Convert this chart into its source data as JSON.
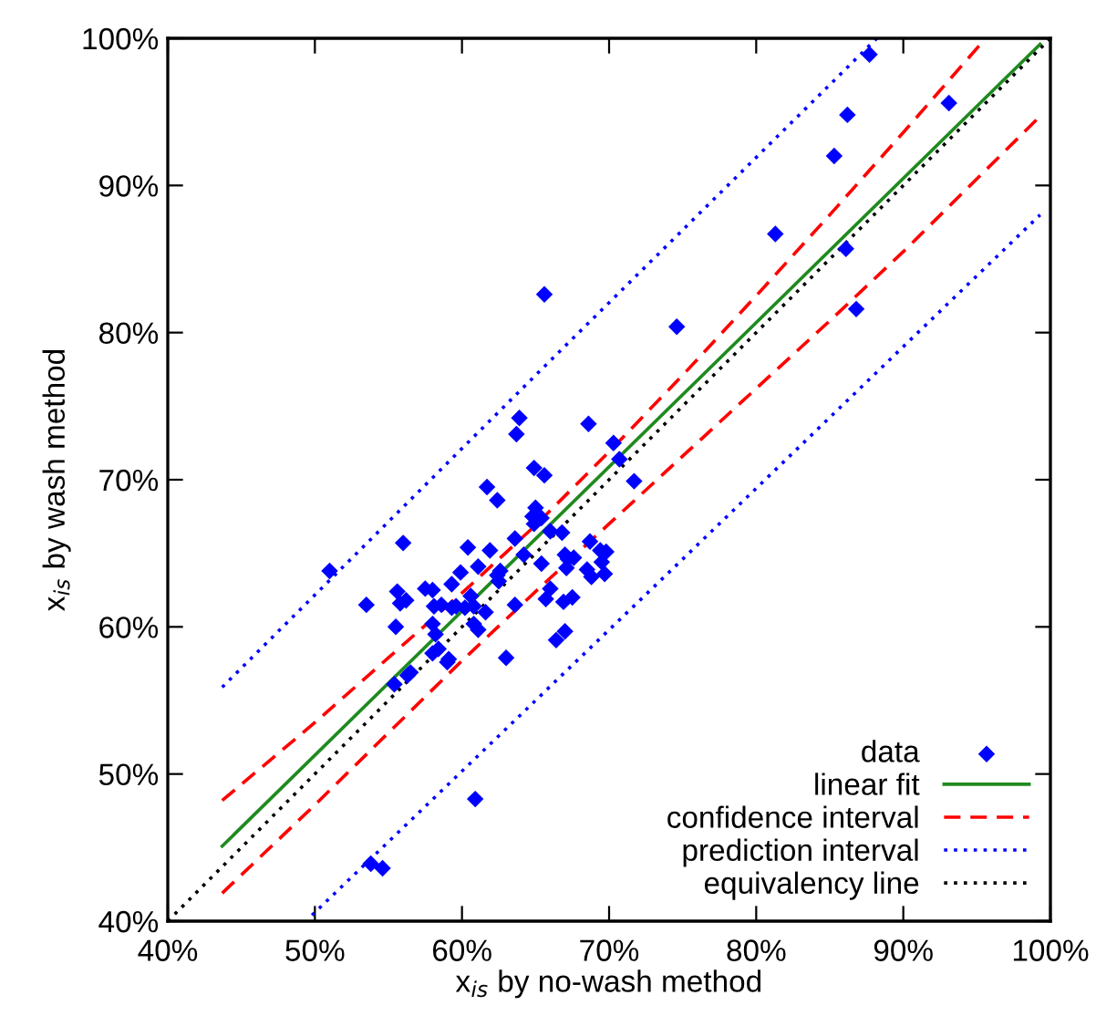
{
  "chart_data": {
    "type": "scatter",
    "xlabel": "x$_{is}$ by no-wash method",
    "ylabel": "x$_{is}$ by wash method",
    "xlim": [
      40,
      100
    ],
    "ylim": [
      40,
      100
    ],
    "xticks": [
      {
        "value": 40,
        "label": "40%"
      },
      {
        "value": 50,
        "label": "50%"
      },
      {
        "value": 60,
        "label": "60%"
      },
      {
        "value": 70,
        "label": "70%"
      },
      {
        "value": 80,
        "label": "80%"
      },
      {
        "value": 90,
        "label": "90%"
      },
      {
        "value": 100,
        "label": "100%"
      }
    ],
    "yticks": [
      {
        "value": 40,
        "label": "40%"
      },
      {
        "value": 50,
        "label": "50%"
      },
      {
        "value": 60,
        "label": "60%"
      },
      {
        "value": 70,
        "label": "70%"
      },
      {
        "value": 80,
        "label": "80%"
      },
      {
        "value": 90,
        "label": "90%"
      },
      {
        "value": 100,
        "label": "100%"
      }
    ],
    "grid": false,
    "legend": "bottom right",
    "series": [
      {
        "name": "data",
        "marker": "diamond",
        "color": "#0000ff",
        "x": [
          87.7,
          93.1,
          86.2,
          85.3,
          81.3,
          86.1,
          86.8,
          65.6,
          74.6,
          63.9,
          63.7,
          68.6,
          70.3,
          70.7,
          71.7,
          64.9,
          65.6,
          61.7,
          62.4,
          65.0,
          64.8,
          65.4,
          64.9,
          66.0,
          66.8,
          63.6,
          68.7,
          56.0,
          60.4,
          61.9,
          64.2,
          69.4,
          69.8,
          67.0,
          67.6,
          67.2,
          69.5,
          65.4,
          61.1,
          67.1,
          68.5,
          51.0,
          59.9,
          62.6,
          62.4,
          69.7,
          68.8,
          62.5,
          59.3,
          66.0,
          57.5,
          58.0,
          55.6,
          60.6,
          67.5,
          65.7,
          56.2,
          55.8,
          66.9,
          53.5,
          58.6,
          58.1,
          59.6,
          63.6,
          59.3,
          60.2,
          60.8,
          61.6,
          58.0,
          55.5,
          60.8,
          61.1,
          67.0,
          58.2,
          66.4,
          58.4,
          58.0,
          63.0,
          59.1,
          59.0,
          56.5,
          56.3,
          55.4,
          60.9,
          53.8,
          54.6
        ],
        "values": [
          98.9,
          95.6,
          94.8,
          92.0,
          86.7,
          85.7,
          81.6,
          82.6,
          80.4,
          74.2,
          73.1,
          73.8,
          72.5,
          71.4,
          69.9,
          70.8,
          70.3,
          69.5,
          68.6,
          68.1,
          67.5,
          67.4,
          67.0,
          66.5,
          66.4,
          66.0,
          65.8,
          65.7,
          65.4,
          65.2,
          64.9,
          65.2,
          65.1,
          64.9,
          64.7,
          64.6,
          64.4,
          64.3,
          64.1,
          64.0,
          63.9,
          63.8,
          63.7,
          63.8,
          63.5,
          63.6,
          63.4,
          63.1,
          62.9,
          62.6,
          62.6,
          62.5,
          62.4,
          62.1,
          62.0,
          61.9,
          61.8,
          61.6,
          61.7,
          61.5,
          61.5,
          61.4,
          61.4,
          61.5,
          61.3,
          61.3,
          61.4,
          61.0,
          60.2,
          60.0,
          60.2,
          59.8,
          59.7,
          59.5,
          59.1,
          58.5,
          58.2,
          57.9,
          57.8,
          57.6,
          56.9,
          56.7,
          56.1,
          48.3,
          43.9,
          43.6
        ]
      },
      {
        "name": "linear fit",
        "type": "line",
        "line_style": "solid",
        "color": "#1f8a1f",
        "x": [
          43.7,
          99.3
        ],
        "values": [
          45.1,
          99.6
        ]
      },
      {
        "name": "confidence interval",
        "type": "line",
        "line_style": "dashed",
        "color": "#ff0000",
        "x": [
          43.7,
          50,
          55,
          60,
          65,
          70,
          75,
          80,
          85,
          90,
          95.6
        ],
        "values": [
          48.2,
          53.5,
          57.9,
          62.3,
          66.9,
          71.9,
          77.1,
          82.5,
          88.0,
          93.6,
          100
        ]
      },
      {
        "type": "line",
        "line_style": "dashed",
        "color": "#ff0000",
        "x": [
          43.7,
          50,
          55,
          60,
          65,
          70,
          75,
          80,
          85,
          90,
          99.3
        ],
        "values": [
          41.9,
          47.9,
          52.8,
          57.7,
          62.4,
          67.0,
          71.6,
          76.2,
          80.8,
          85.5,
          94.7
        ]
      },
      {
        "name": "prediction interval",
        "type": "line",
        "line_style": "dotted",
        "color": "#0000ff",
        "x": [
          43.7,
          65,
          88.2
        ],
        "values": [
          55.9,
          77.1,
          100
        ]
      },
      {
        "type": "line",
        "line_style": "dotted",
        "color": "#0000ff",
        "x": [
          49.8,
          75,
          99.3
        ],
        "values": [
          40.4,
          64.6,
          88.0
        ]
      },
      {
        "name": "equivalency line",
        "type": "line",
        "line_style": "dotted",
        "color": "#000000",
        "x": [
          40,
          100
        ],
        "values": [
          40,
          100
        ]
      }
    ]
  }
}
